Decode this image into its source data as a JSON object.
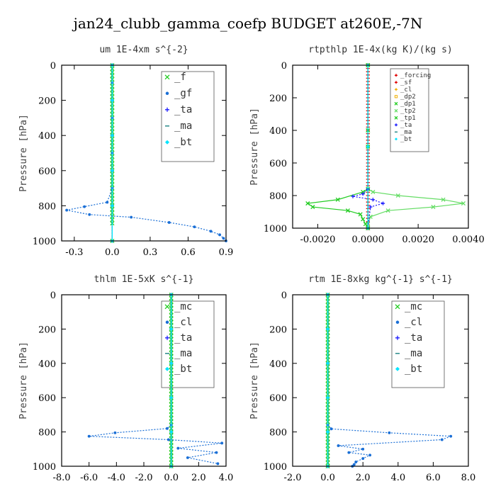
{
  "title": "jan24_clubb_gamma_coefp  BUDGET at260E,-7N",
  "colors": {
    "green": "#22cc22",
    "lightgreen": "#66dd66",
    "blue": "#1a6fd6",
    "navy": "#1a1aff",
    "cyan": "#00e5ff",
    "red": "#e00000",
    "gold": "#f0b000",
    "teal": "#2a8a8a"
  },
  "chart_data": [
    {
      "type": "line",
      "title": "um   1E-4xm s^{-2}",
      "ylabel": "Pressure [hPa]",
      "xlim": [
        -0.4,
        0.9
      ],
      "ylim": [
        1000,
        0
      ],
      "xticks": [
        "-0.3",
        "0.0",
        "0.3",
        "0.6",
        "0.9"
      ],
      "xtick_values": [
        -0.3,
        0,
        0.3,
        0.6,
        0.9
      ],
      "yticks": [
        "0",
        "200",
        "400",
        "600",
        "800",
        "1000"
      ],
      "legend_position": "top-right",
      "series": [
        {
          "name": "_f",
          "color": "#22cc22",
          "marker": "x",
          "dash": false,
          "x": [
            0,
            0,
            0,
            0,
            0,
            0,
            0,
            0,
            0,
            0,
            0,
            0,
            0,
            0,
            0,
            0,
            0,
            0,
            0,
            0,
            0,
            0,
            0,
            0,
            0,
            0,
            0,
            0,
            0,
            0,
            0,
            0,
            0,
            0,
            0,
            0,
            0,
            0,
            0,
            0,
            0,
            0,
            0,
            0,
            0,
            0,
            0
          ],
          "y": [
            0,
            20,
            40,
            60,
            80,
            100,
            120,
            140,
            160,
            180,
            200,
            220,
            240,
            260,
            280,
            300,
            320,
            340,
            360,
            380,
            400,
            420,
            440,
            460,
            480,
            500,
            520,
            540,
            560,
            580,
            600,
            620,
            640,
            660,
            680,
            700,
            720,
            740,
            760,
            780,
            800,
            820,
            840,
            860,
            880,
            900,
            1000
          ]
        },
        {
          "name": "_gf",
          "color": "#1a6fd6",
          "marker": "dot",
          "dash": true,
          "x": [
            0,
            0,
            0,
            0,
            0,
            0,
            0,
            0,
            -0.04,
            -0.22,
            -0.36,
            -0.18,
            0.15,
            0.45,
            0.65,
            0.78,
            0.85,
            0.88,
            0.9
          ],
          "y": [
            0,
            100,
            200,
            300,
            400,
            500,
            600,
            700,
            780,
            805,
            825,
            850,
            865,
            895,
            920,
            945,
            965,
            985,
            1000
          ]
        },
        {
          "name": "_ta",
          "color": "#1a1aff",
          "marker": "plus",
          "dash": true,
          "x": [
            0,
            0,
            0,
            0,
            0,
            0
          ],
          "y": [
            0,
            200,
            400,
            600,
            800,
            1000
          ]
        },
        {
          "name": "_ma",
          "color": "#2a8a8a",
          "marker": "dash",
          "dash": false,
          "x": [
            0,
            0,
            0,
            0,
            0,
            0
          ],
          "y": [
            0,
            200,
            400,
            600,
            800,
            1000
          ]
        },
        {
          "name": "_bt",
          "color": "#00e5ff",
          "marker": "diamond",
          "dash": false,
          "x": [
            0,
            0,
            0,
            0,
            0,
            0
          ],
          "y": [
            0,
            200,
            400,
            600,
            800,
            1000
          ]
        }
      ]
    },
    {
      "type": "line",
      "title": "rtpthlp   1E-4x(kg K)/(kg s)",
      "ylabel": "Pressure [hPa]",
      "xlim": [
        -0.003,
        0.004
      ],
      "ylim": [
        1000,
        0
      ],
      "xticks": [
        "-0.0020",
        "0.0000",
        "0.0020",
        "0.0040"
      ],
      "xtick_values": [
        -0.002,
        0,
        0.002,
        0.004
      ],
      "yticks": [
        "0",
        "200",
        "400",
        "600",
        "800",
        "1000"
      ],
      "legend_position": "top-right",
      "series": [
        {
          "name": "_forcing",
          "color": "#e00000",
          "marker": "plus",
          "dash": false,
          "x": [
            0,
            0,
            0,
            0,
            0,
            0,
            0,
            0,
            0,
            0,
            0,
            0,
            0,
            0,
            0,
            0,
            0,
            0,
            0,
            0,
            0,
            0,
            0,
            0,
            0,
            0,
            0,
            0,
            0,
            0,
            0,
            0,
            0,
            0,
            0,
            0,
            0,
            0,
            0,
            0,
            0,
            0,
            0,
            0,
            0,
            0,
            0,
            0,
            0,
            0,
            0
          ],
          "y": [
            0,
            20,
            40,
            60,
            80,
            100,
            120,
            140,
            160,
            180,
            200,
            220,
            240,
            260,
            280,
            300,
            320,
            340,
            360,
            380,
            400,
            420,
            440,
            460,
            480,
            500,
            520,
            540,
            560,
            580,
            600,
            620,
            640,
            660,
            680,
            700,
            720,
            740,
            760,
            780,
            800,
            820,
            840,
            860,
            880,
            900,
            920,
            940,
            960,
            980,
            1000
          ]
        },
        {
          "name": "_sf",
          "color": "#e00000",
          "marker": "plus",
          "dash": false,
          "x": [
            0,
            0,
            0
          ],
          "y": [
            0,
            500,
            1000
          ]
        },
        {
          "name": "_cl",
          "color": "#f0b000",
          "marker": "plus",
          "dash": false,
          "x": [
            0,
            0,
            0
          ],
          "y": [
            0,
            500,
            1000
          ]
        },
        {
          "name": "_dp2",
          "color": "#f0b000",
          "marker": "square",
          "dash": false,
          "x": [
            0,
            0,
            0
          ],
          "y": [
            0,
            500,
            1000
          ]
        },
        {
          "name": "_dp1",
          "color": "#22cc22",
          "marker": "x",
          "dash": false,
          "x": [
            0,
            0,
            0
          ],
          "y": [
            0,
            500,
            1000
          ]
        },
        {
          "name": "_tp2",
          "color": "#66dd66",
          "marker": "x",
          "dash": false,
          "x": [
            0,
            0,
            0,
            0.0002,
            0.0012,
            0.003,
            0.0038,
            0.0026,
            0.0008,
            0.0001,
            0,
            0
          ],
          "y": [
            0,
            400,
            760,
            778,
            800,
            825,
            848,
            870,
            892,
            930,
            975,
            1000
          ]
        },
        {
          "name": "_tp1",
          "color": "#22cc22",
          "marker": "x",
          "dash": false,
          "x": [
            0,
            0,
            0,
            -0.0002,
            -0.0012,
            -0.0024,
            -0.0022,
            -0.0008,
            -0.0003,
            -0.0002,
            -0.0001,
            0
          ],
          "y": [
            0,
            400,
            760,
            778,
            825,
            848,
            870,
            892,
            915,
            945,
            975,
            1000
          ]
        },
        {
          "name": "_ta",
          "color": "#1a1aff",
          "marker": "plus",
          "dash": true,
          "x": [
            0,
            0,
            -0.0002,
            -0.0006,
            0.0002,
            0.0006,
            0.0001,
            0
          ],
          "y": [
            0,
            760,
            790,
            805,
            825,
            848,
            870,
            1000
          ]
        },
        {
          "name": "_ma",
          "color": "#2a8a8a",
          "marker": "dash",
          "dash": false,
          "x": [
            0,
            0,
            0
          ],
          "y": [
            0,
            500,
            1000
          ]
        },
        {
          "name": "_bt",
          "color": "#00e5ff",
          "marker": "diamond",
          "dash": false,
          "x": [
            0,
            0,
            0
          ],
          "y": [
            0,
            500,
            1000
          ]
        }
      ]
    },
    {
      "type": "line",
      "title": "thlm   1E-5xK s^{-1}",
      "ylabel": "Pressure [hPa]",
      "xlim": [
        -8.0,
        4.0
      ],
      "ylim": [
        1000,
        0
      ],
      "xticks": [
        "-8.0",
        "-6.0",
        "-4.0",
        "-2.0",
        "0.0",
        "2.0",
        "4.0"
      ],
      "xtick_values": [
        -8,
        -6,
        -4,
        -2,
        0,
        2,
        4
      ],
      "yticks": [
        "0",
        "200",
        "400",
        "600",
        "800",
        "1000"
      ],
      "legend_position": "top-right",
      "series": [
        {
          "name": "_mc",
          "color": "#22cc22",
          "marker": "x",
          "dash": false,
          "x": [
            0,
            0,
            0,
            0,
            0,
            0,
            0,
            0,
            0,
            0,
            0,
            0,
            0,
            0,
            0,
            0,
            0,
            0,
            0,
            0,
            0,
            0,
            0,
            0,
            0,
            0,
            0,
            0,
            0,
            0,
            0,
            0,
            0,
            0,
            0,
            0,
            0,
            0,
            0,
            0,
            0,
            0,
            0,
            0,
            0,
            0,
            0,
            0,
            0,
            0,
            0
          ],
          "y": [
            0,
            20,
            40,
            60,
            80,
            100,
            120,
            140,
            160,
            180,
            200,
            220,
            240,
            260,
            280,
            300,
            320,
            340,
            360,
            380,
            400,
            420,
            440,
            460,
            480,
            500,
            520,
            540,
            560,
            580,
            600,
            620,
            640,
            660,
            680,
            700,
            720,
            740,
            760,
            780,
            800,
            820,
            840,
            860,
            880,
            900,
            920,
            940,
            960,
            980,
            1000
          ]
        },
        {
          "name": "_cl",
          "color": "#1a6fd6",
          "marker": "dot",
          "dash": true,
          "x": [
            0,
            0,
            0,
            -0.3,
            -4.1,
            -6.0,
            -0.2,
            3.7,
            0.5,
            3.3,
            1.2,
            3.4
          ],
          "y": [
            0,
            400,
            760,
            780,
            805,
            825,
            845,
            865,
            895,
            920,
            950,
            985
          ]
        },
        {
          "name": "_ta",
          "color": "#1a1aff",
          "marker": "plus",
          "dash": true,
          "x": [
            0,
            0,
            0,
            0,
            0,
            0
          ],
          "y": [
            0,
            200,
            400,
            600,
            800,
            1000
          ]
        },
        {
          "name": "_ma",
          "color": "#2a8a8a",
          "marker": "dash",
          "dash": false,
          "x": [
            0,
            0,
            0,
            0,
            0,
            0
          ],
          "y": [
            0,
            200,
            400,
            600,
            800,
            1000
          ]
        },
        {
          "name": "_bt",
          "color": "#00e5ff",
          "marker": "diamond",
          "dash": false,
          "x": [
            0,
            0,
            0,
            0,
            0,
            0
          ],
          "y": [
            0,
            200,
            400,
            600,
            800,
            1000
          ]
        }
      ]
    },
    {
      "type": "line",
      "title": "rtm   1E-8xkg kg^{-1} s^{-1}",
      "ylabel": "Pressure [hPa]",
      "xlim": [
        -2.0,
        8.0
      ],
      "ylim": [
        1000,
        0
      ],
      "xticks": [
        "-2.0",
        "0.0",
        "2.0",
        "4.0",
        "6.0",
        "8.0"
      ],
      "xtick_values": [
        -2,
        0,
        2,
        4,
        6,
        8
      ],
      "yticks": [
        "0",
        "200",
        "400",
        "600",
        "800",
        "1000"
      ],
      "legend_position": "top-right",
      "series": [
        {
          "name": "_mc",
          "color": "#22cc22",
          "marker": "x",
          "dash": false,
          "x": [
            0,
            0,
            0,
            0,
            0,
            0,
            0,
            0,
            0,
            0,
            0,
            0,
            0,
            0,
            0,
            0,
            0,
            0,
            0,
            0,
            0,
            0,
            0,
            0,
            0,
            0,
            0,
            0,
            0,
            0,
            0,
            0,
            0,
            0,
            0,
            0,
            0,
            0,
            0,
            0,
            0,
            0,
            0,
            0,
            0,
            0,
            0,
            0,
            0,
            0,
            0
          ],
          "y": [
            0,
            20,
            40,
            60,
            80,
            100,
            120,
            140,
            160,
            180,
            200,
            220,
            240,
            260,
            280,
            300,
            320,
            340,
            360,
            380,
            400,
            420,
            440,
            460,
            480,
            500,
            520,
            540,
            560,
            580,
            600,
            620,
            640,
            660,
            680,
            700,
            720,
            740,
            760,
            780,
            800,
            820,
            840,
            860,
            880,
            900,
            920,
            940,
            960,
            980,
            1000
          ]
        },
        {
          "name": "_cl",
          "color": "#1a6fd6",
          "marker": "dot",
          "dash": true,
          "x": [
            0,
            0,
            0,
            0.2,
            3.5,
            7.0,
            6.5,
            0.6,
            2.0,
            1.2,
            2.4,
            2.0,
            1.6,
            1.5,
            1.4
          ],
          "y": [
            0,
            400,
            760,
            782,
            805,
            825,
            845,
            880,
            900,
            920,
            935,
            955,
            975,
            990,
            1000
          ]
        },
        {
          "name": "_ta",
          "color": "#1a1aff",
          "marker": "plus",
          "dash": true,
          "x": [
            0,
            0,
            0,
            0,
            0,
            0
          ],
          "y": [
            0,
            200,
            400,
            600,
            800,
            1000
          ]
        },
        {
          "name": "_ma",
          "color": "#2a8a8a",
          "marker": "dash",
          "dash": false,
          "x": [
            0,
            0,
            0,
            0,
            0,
            0
          ],
          "y": [
            0,
            200,
            400,
            600,
            800,
            1000
          ]
        },
        {
          "name": "_bt",
          "color": "#00e5ff",
          "marker": "diamond",
          "dash": false,
          "x": [
            0,
            0,
            0,
            0,
            0,
            0
          ],
          "y": [
            0,
            200,
            400,
            600,
            800,
            1000
          ]
        }
      ]
    }
  ]
}
